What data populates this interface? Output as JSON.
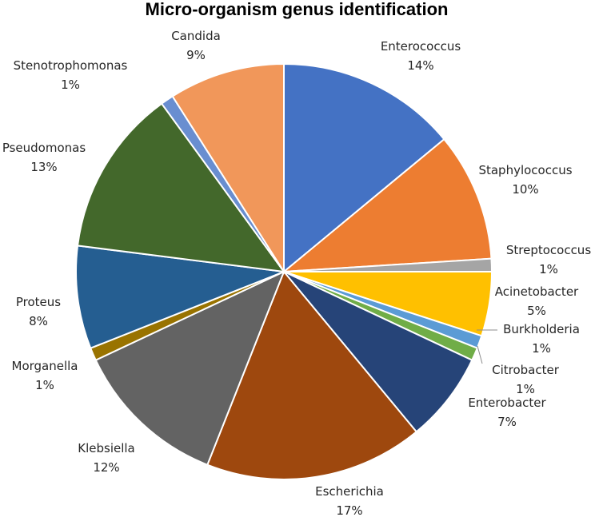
{
  "chart_data": {
    "type": "pie",
    "title": "Micro-organism genus identification",
    "slices": [
      {
        "label": "Enterococcus",
        "pct_label": "14%",
        "value": 14,
        "color": "#4472C4"
      },
      {
        "label": "Staphylococcus",
        "pct_label": "10%",
        "value": 10,
        "color": "#ED7D31"
      },
      {
        "label": "Streptococcus",
        "pct_label": "1%",
        "value": 1,
        "color": "#A5A5A5"
      },
      {
        "label": "Acinetobacter",
        "pct_label": "5%",
        "value": 5,
        "color": "#FFC000"
      },
      {
        "label": "Burkholderia",
        "pct_label": "1%",
        "value": 1,
        "color": "#5B9BD5"
      },
      {
        "label": "Citrobacter",
        "pct_label": "1%",
        "value": 1,
        "color": "#70AD47"
      },
      {
        "label": "Enterobacter",
        "pct_label": "7%",
        "value": 7,
        "color": "#264478"
      },
      {
        "label": "Escherichia",
        "pct_label": "17%",
        "value": 17,
        "color": "#9E480E"
      },
      {
        "label": "Klebsiella",
        "pct_label": "12%",
        "value": 12,
        "color": "#636363"
      },
      {
        "label": "Morganella",
        "pct_label": "1%",
        "value": 1,
        "color": "#997300"
      },
      {
        "label": "Proteus",
        "pct_label": "8%",
        "value": 8,
        "color": "#255E91"
      },
      {
        "label": "Pseudomonas",
        "pct_label": "13%",
        "value": 13,
        "color": "#43682B"
      },
      {
        "label": "Stenotrophomonas",
        "pct_label": "1%",
        "value": 1,
        "color": "#698ED0"
      },
      {
        "label": "Candida",
        "pct_label": "9%",
        "value": 9,
        "color": "#F1975A"
      }
    ]
  }
}
